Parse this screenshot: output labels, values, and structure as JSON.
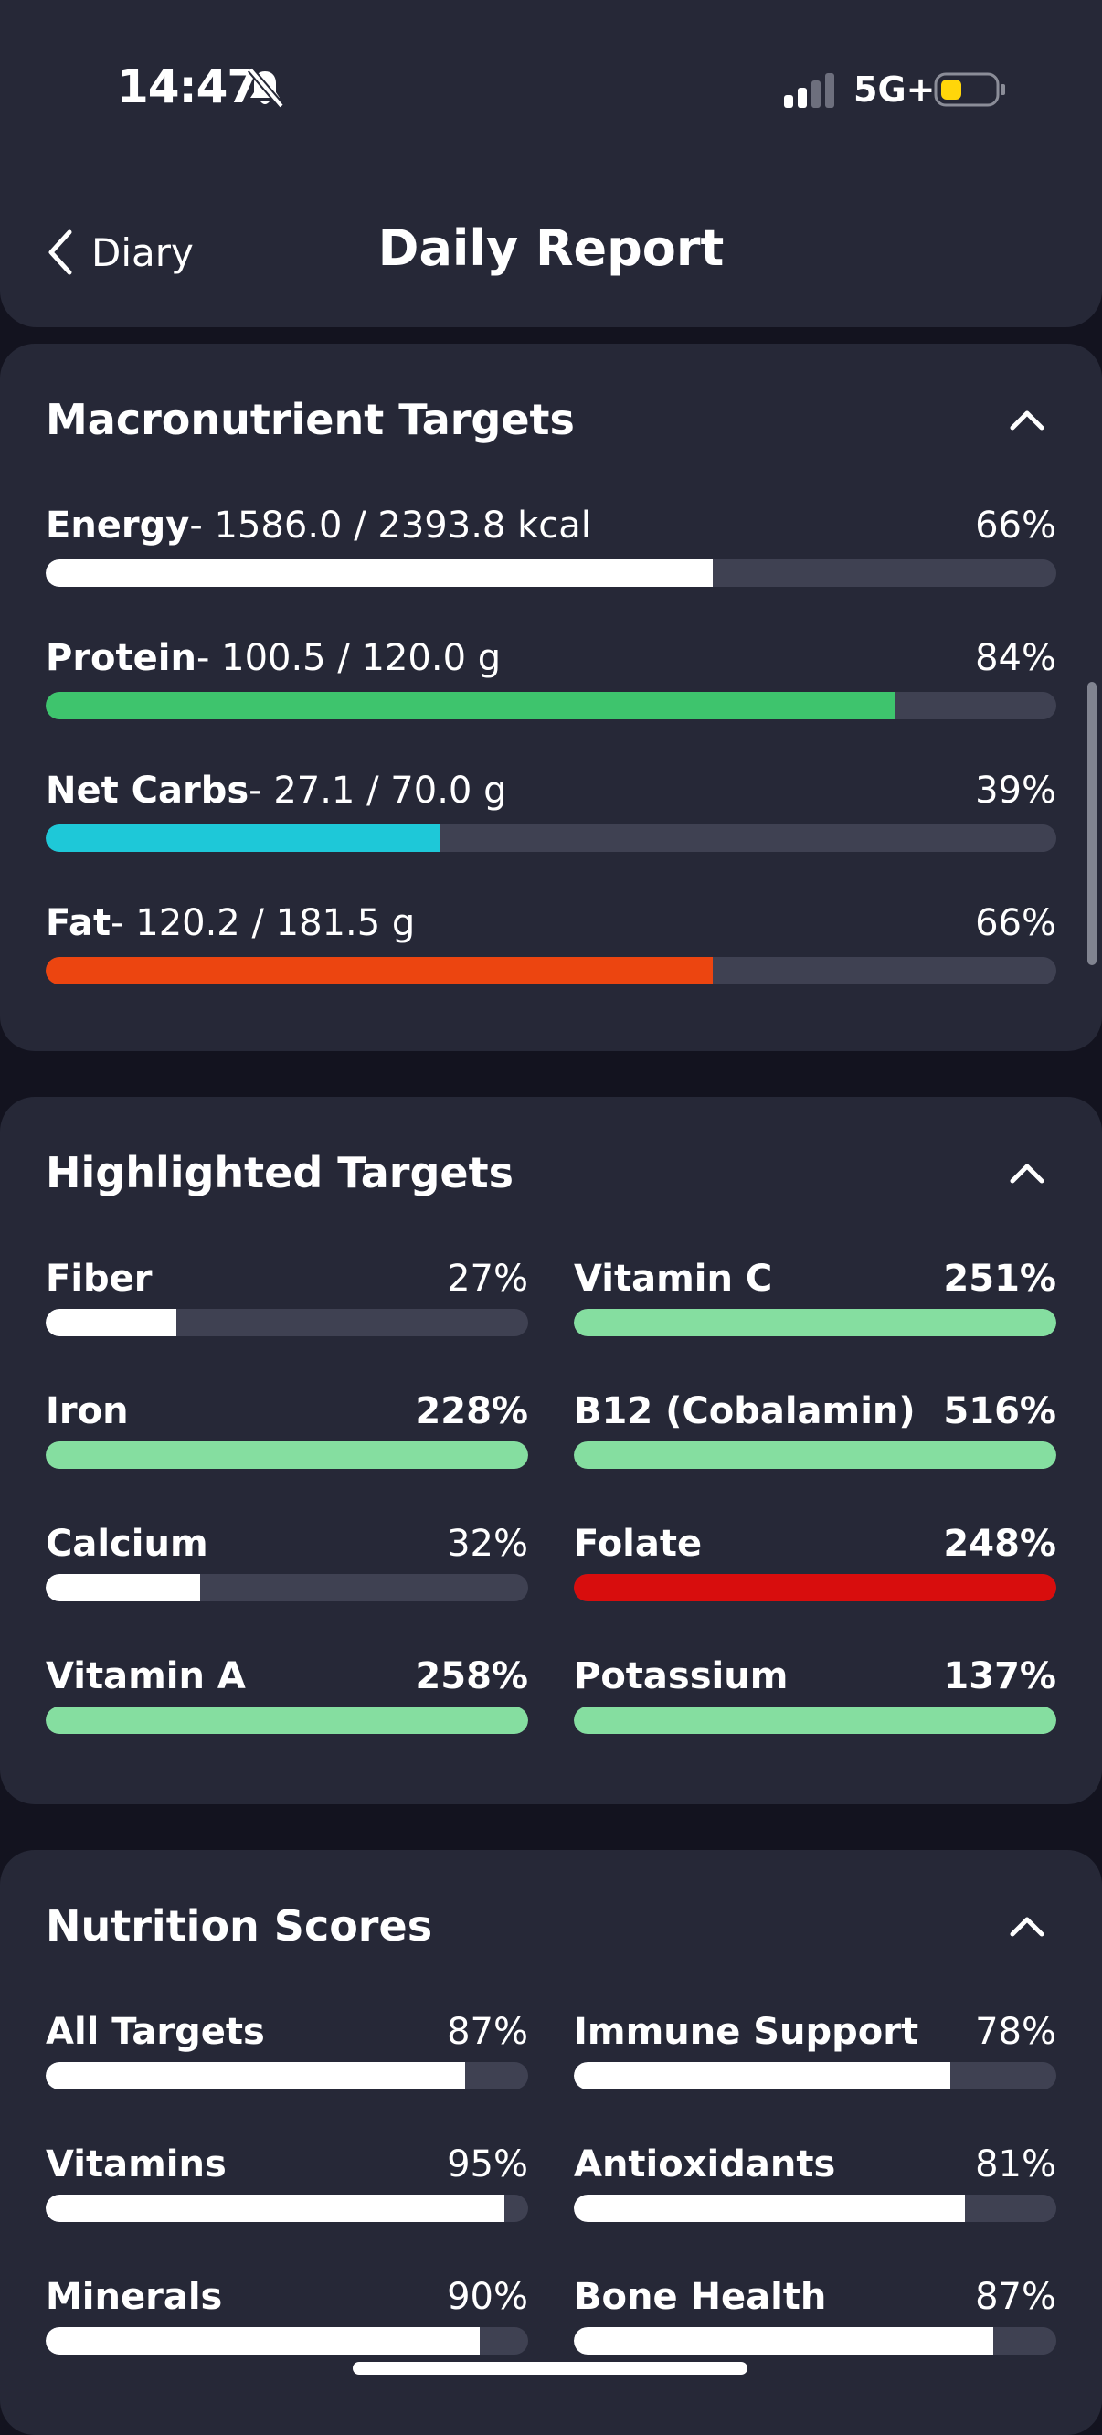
{
  "status": {
    "time": "14:47",
    "network": "5G+"
  },
  "header": {
    "back_label": "Diary",
    "title": "Daily Report"
  },
  "macros": {
    "title": "Macronutrient Targets",
    "items": [
      {
        "name": "Energy",
        "detail": "- 1586.0 / 2393.8 kcal",
        "percent": "66%",
        "progress": 0.66,
        "color": "#ffffff"
      },
      {
        "name": "Protein",
        "detail": "- 100.5 / 120.0 g",
        "percent": "84%",
        "progress": 0.84,
        "color": "#3ec46d"
      },
      {
        "name": "Net Carbs",
        "detail": "- 27.1 / 70.0 g",
        "percent": "39%",
        "progress": 0.39,
        "color": "#1ec8d8"
      },
      {
        "name": "Fat",
        "detail": "- 120.2 / 181.5 g",
        "percent": "66%",
        "progress": 0.66,
        "color": "#ec4510"
      }
    ]
  },
  "highlighted": {
    "title": "Highlighted Targets",
    "items": [
      {
        "name": "Fiber",
        "percent": "27%",
        "progress": 0.27,
        "color": "#ffffff",
        "bold": false
      },
      {
        "name": "Vitamin C",
        "percent": "251%",
        "progress": 1.0,
        "color": "#85dea0",
        "bold": true
      },
      {
        "name": "Iron",
        "percent": "228%",
        "progress": 1.0,
        "color": "#85dea0",
        "bold": true
      },
      {
        "name": "B12 (Cobalamin)",
        "percent": "516%",
        "progress": 1.0,
        "color": "#85dea0",
        "bold": true
      },
      {
        "name": "Calcium",
        "percent": "32%",
        "progress": 0.32,
        "color": "#ffffff",
        "bold": false
      },
      {
        "name": "Folate",
        "percent": "248%",
        "progress": 1.0,
        "color": "#d80d0d",
        "bold": true
      },
      {
        "name": "Vitamin A",
        "percent": "258%",
        "progress": 1.0,
        "color": "#85dea0",
        "bold": true
      },
      {
        "name": "Potassium",
        "percent": "137%",
        "progress": 1.0,
        "color": "#85dea0",
        "bold": true
      }
    ]
  },
  "scores": {
    "title": "Nutrition Scores",
    "items": [
      {
        "name": "All Targets",
        "percent": "87%",
        "progress": 0.87,
        "color": "#ffffff",
        "bold": false
      },
      {
        "name": "Immune Support",
        "percent": "78%",
        "progress": 0.78,
        "color": "#ffffff",
        "bold": false
      },
      {
        "name": "Vitamins",
        "percent": "95%",
        "progress": 0.95,
        "color": "#ffffff",
        "bold": false
      },
      {
        "name": "Antioxidants",
        "percent": "81%",
        "progress": 0.81,
        "color": "#ffffff",
        "bold": false
      },
      {
        "name": "Minerals",
        "percent": "90%",
        "progress": 0.9,
        "color": "#ffffff",
        "bold": false
      },
      {
        "name": "Bone Health",
        "percent": "87%",
        "progress": 0.87,
        "color": "#ffffff",
        "bold": false
      }
    ]
  },
  "icons": {
    "back": "chevron-left-icon",
    "collapse": "chevron-up-icon",
    "silent": "bell-slash-icon",
    "signal": "signal-icon",
    "battery": "battery-icon"
  }
}
